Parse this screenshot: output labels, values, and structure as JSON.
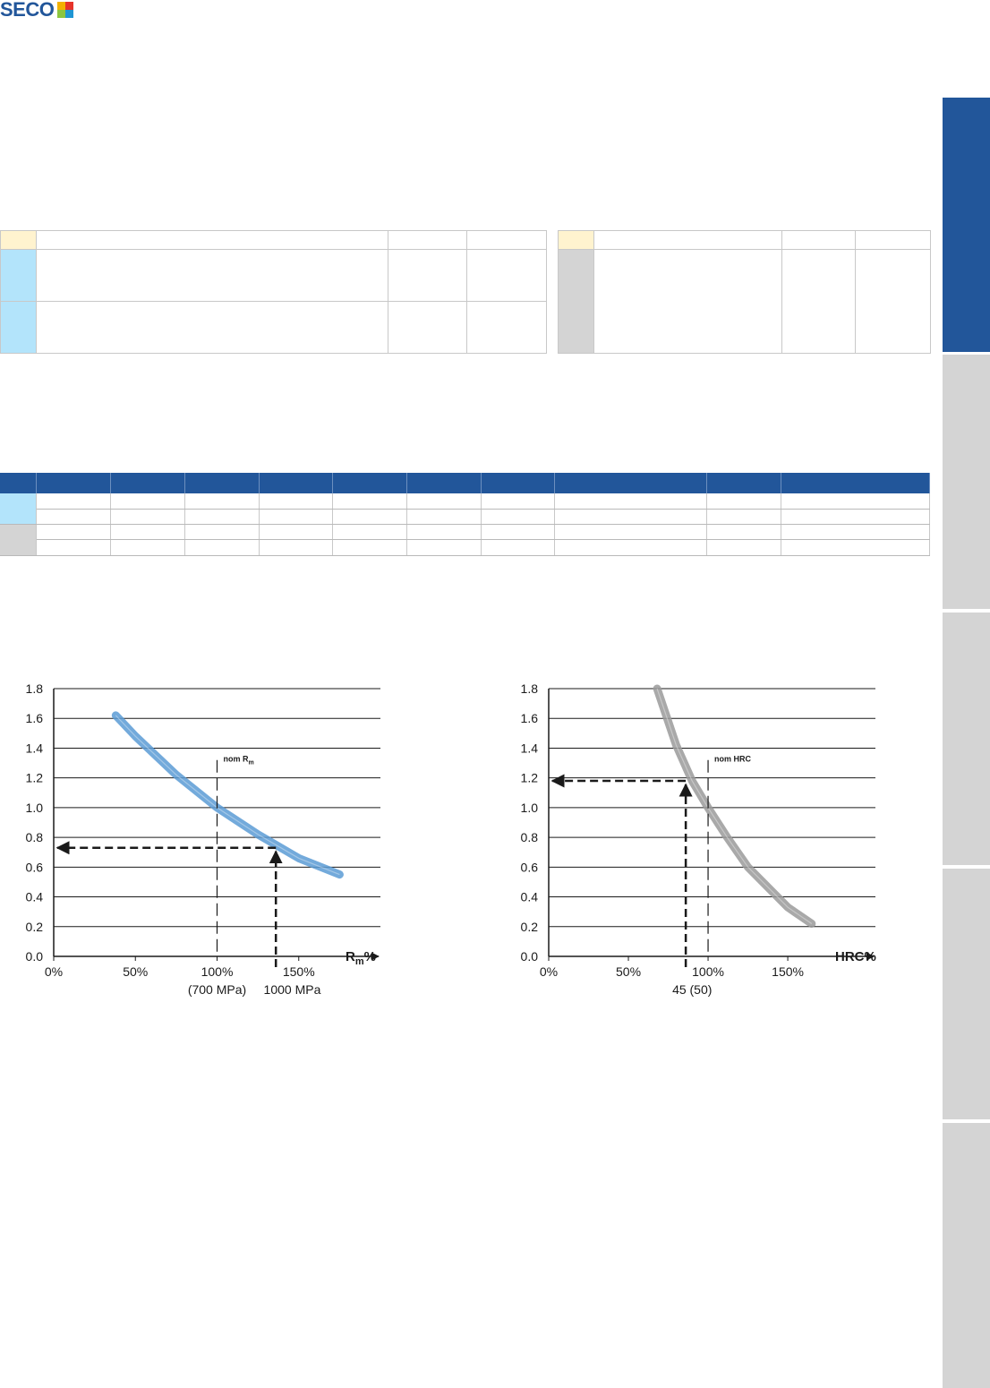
{
  "brand": {
    "logo_text": "SECO",
    "accent": "#22569a",
    "light_blue": "#b3e4fb",
    "light_grey": "#d4d4d4",
    "pale_yellow": "#fff3cf"
  },
  "side_tabs": [
    {
      "id": "active",
      "color": "#22569a"
    },
    {
      "id": "tab-2",
      "color": "#d4d4d4"
    },
    {
      "id": "tab-3",
      "color": "#d4d4d4"
    },
    {
      "id": "tab-4",
      "color": "#d4d4d4"
    },
    {
      "id": "tab-5",
      "color": "#d4d4d4"
    },
    {
      "id": "tab-6",
      "color": "#d4d4d4"
    }
  ],
  "chart_data": [
    {
      "type": "line",
      "series": [
        {
          "x": [
            38,
            50,
            75,
            100,
            125,
            150,
            175
          ],
          "y": [
            1.62,
            1.48,
            1.22,
            1.0,
            0.82,
            0.66,
            0.55
          ]
        }
      ],
      "xaxis_ticks": [
        "0%",
        "50%",
        "100%",
        "150%"
      ],
      "x_tick_values": [
        0,
        50,
        100,
        150
      ],
      "xlabel_main": "R",
      "xlabel_sub": "m",
      "xlabel_suffix": "%",
      "yaxis_ticks": [
        "0.0",
        "0.2",
        "0.4",
        "0.6",
        "0.8",
        "1.0",
        "1.2",
        "1.4",
        "1.6",
        "1.8"
      ],
      "ylim": [
        0,
        1.8
      ],
      "xlim": [
        0,
        200
      ],
      "grid": "horizontal",
      "nominal_label": "nom R",
      "nominal_label_sub": "m",
      "nominal_x": 100,
      "reference": {
        "x": 136,
        "y": 0.73
      },
      "annotations": [
        "(700 MPa)",
        "1000 MPa"
      ],
      "color": "#5b9bd5"
    },
    {
      "type": "line",
      "series": [
        {
          "x": [
            68,
            80,
            90,
            100,
            112,
            125,
            150,
            165
          ],
          "y": [
            1.8,
            1.42,
            1.18,
            1.0,
            0.8,
            0.6,
            0.33,
            0.22
          ]
        }
      ],
      "xaxis_ticks": [
        "0%",
        "50%",
        "100%",
        "150%"
      ],
      "x_tick_values": [
        0,
        50,
        100,
        150
      ],
      "xlabel_main": "HRC%",
      "yaxis_ticks": [
        "0.0",
        "0.2",
        "0.4",
        "0.6",
        "0.8",
        "1.0",
        "1.2",
        "1.4",
        "1.6",
        "1.8"
      ],
      "ylim": [
        0,
        1.8
      ],
      "xlim": [
        0,
        205
      ],
      "grid": "horizontal",
      "nominal_label": "nom HRC",
      "nominal_x": 100,
      "reference": {
        "x": 86,
        "y": 1.18
      },
      "annotations": [
        "45 (50)"
      ],
      "color": "#9a9a9a"
    }
  ]
}
